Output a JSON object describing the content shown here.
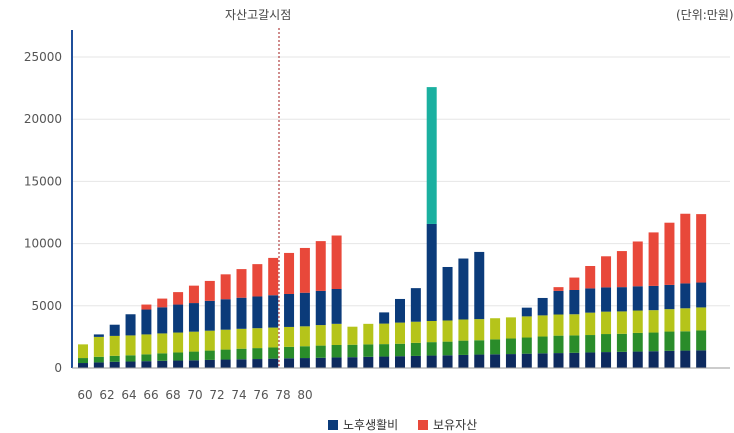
{
  "chart_data": {
    "type": "bar",
    "stacked": true,
    "marker_label": "자산고갈시점",
    "unit_label": "(단위:만원)",
    "marker_category": "78",
    "ylim": [
      0,
      27000
    ],
    "yticks": [
      0,
      5000,
      10000,
      15000,
      20000,
      25000
    ],
    "x_tick_labels": [
      "60",
      "62",
      "64",
      "66",
      "68",
      "70",
      "72",
      "74",
      "76",
      "78",
      "80"
    ],
    "grid": true,
    "legend_position": "bottom",
    "colors": {
      "segment1": "#0d2a5e",
      "segment2": "#2a8c2a",
      "segment3": "#b5c41a",
      "segment4": "#0b3b7a",
      "asset": "#e8483a",
      "special": "#1ab0a0",
      "axis": "#1f4f9a",
      "marker": "#a01818"
    },
    "series": [
      {
        "name": "",
        "color_key": "segment1",
        "values": [
          400,
          450,
          500,
          520,
          550,
          580,
          600,
          620,
          650,
          680,
          700,
          720,
          750,
          780,
          800,
          820,
          850,
          870,
          900,
          920,
          950,
          970,
          1000,
          1020,
          1050,
          1080,
          1100,
          1120,
          1150,
          1180,
          1200,
          1220,
          1250,
          1280,
          1300,
          1320,
          1350,
          1380,
          1400,
          1420
        ]
      },
      {
        "name": "",
        "color_key": "segment2",
        "values": [
          400,
          450,
          480,
          500,
          550,
          600,
          650,
          700,
          750,
          800,
          850,
          880,
          900,
          920,
          950,
          980,
          1000,
          1000,
          1000,
          1000,
          1000,
          1050,
          1080,
          1100,
          1150,
          1150,
          1200,
          1250,
          1300,
          1350,
          1400,
          1400,
          1400,
          1450,
          1450,
          1500,
          1500,
          1550,
          1550,
          1600
        ]
      },
      {
        "name": "",
        "color_key": "segment3",
        "values": [
          1100,
          1600,
          1600,
          1600,
          1600,
          1600,
          1600,
          1600,
          1600,
          1600,
          1600,
          1600,
          1600,
          1600,
          1600,
          1650,
          1700,
          1450,
          1650,
          1650,
          1700,
          1700,
          1700,
          1700,
          1700,
          1700,
          1700,
          1700,
          1700,
          1700,
          1700,
          1700,
          1800,
          1800,
          1800,
          1800,
          1800,
          1800,
          1850,
          1850
        ]
      },
      {
        "name": "노후생활비",
        "color_key": "segment4",
        "values": [
          0,
          200,
          900,
          1700,
          2000,
          2100,
          2250,
          2300,
          2400,
          2450,
          2500,
          2550,
          2600,
          2650,
          2700,
          2750,
          2800,
          0,
          0,
          900,
          1900,
          2700,
          7800,
          4300,
          4900,
          5400,
          0,
          0,
          700,
          1400,
          1900,
          1950,
          1950,
          1950,
          1950,
          1950,
          1950,
          1950,
          2000,
          2000
        ]
      },
      {
        "name": "보유자산",
        "color_key": "asset",
        "values": [
          0,
          0,
          0,
          0,
          400,
          700,
          1000,
          1400,
          1600,
          2000,
          2300,
          2600,
          3000,
          3300,
          3600,
          4000,
          4300,
          0,
          0,
          0,
          0,
          0,
          0,
          0,
          0,
          0,
          0,
          0,
          0,
          0,
          300,
          1000,
          1800,
          2500,
          2900,
          3600,
          4300,
          5000,
          5600,
          5500
        ]
      },
      {
        "name": "",
        "color_key": "special",
        "values": [
          0,
          0,
          0,
          0,
          0,
          0,
          0,
          0,
          0,
          0,
          0,
          0,
          0,
          0,
          0,
          0,
          0,
          0,
          0,
          0,
          0,
          0,
          11000,
          0,
          0,
          0,
          0,
          0,
          0,
          0,
          0,
          0,
          0,
          0,
          0,
          0,
          0,
          0,
          0,
          0
        ]
      }
    ],
    "legend": [
      {
        "label": "노후생활비",
        "color_key": "segment4"
      },
      {
        "label": "보유자산",
        "color_key": "asset"
      }
    ]
  }
}
